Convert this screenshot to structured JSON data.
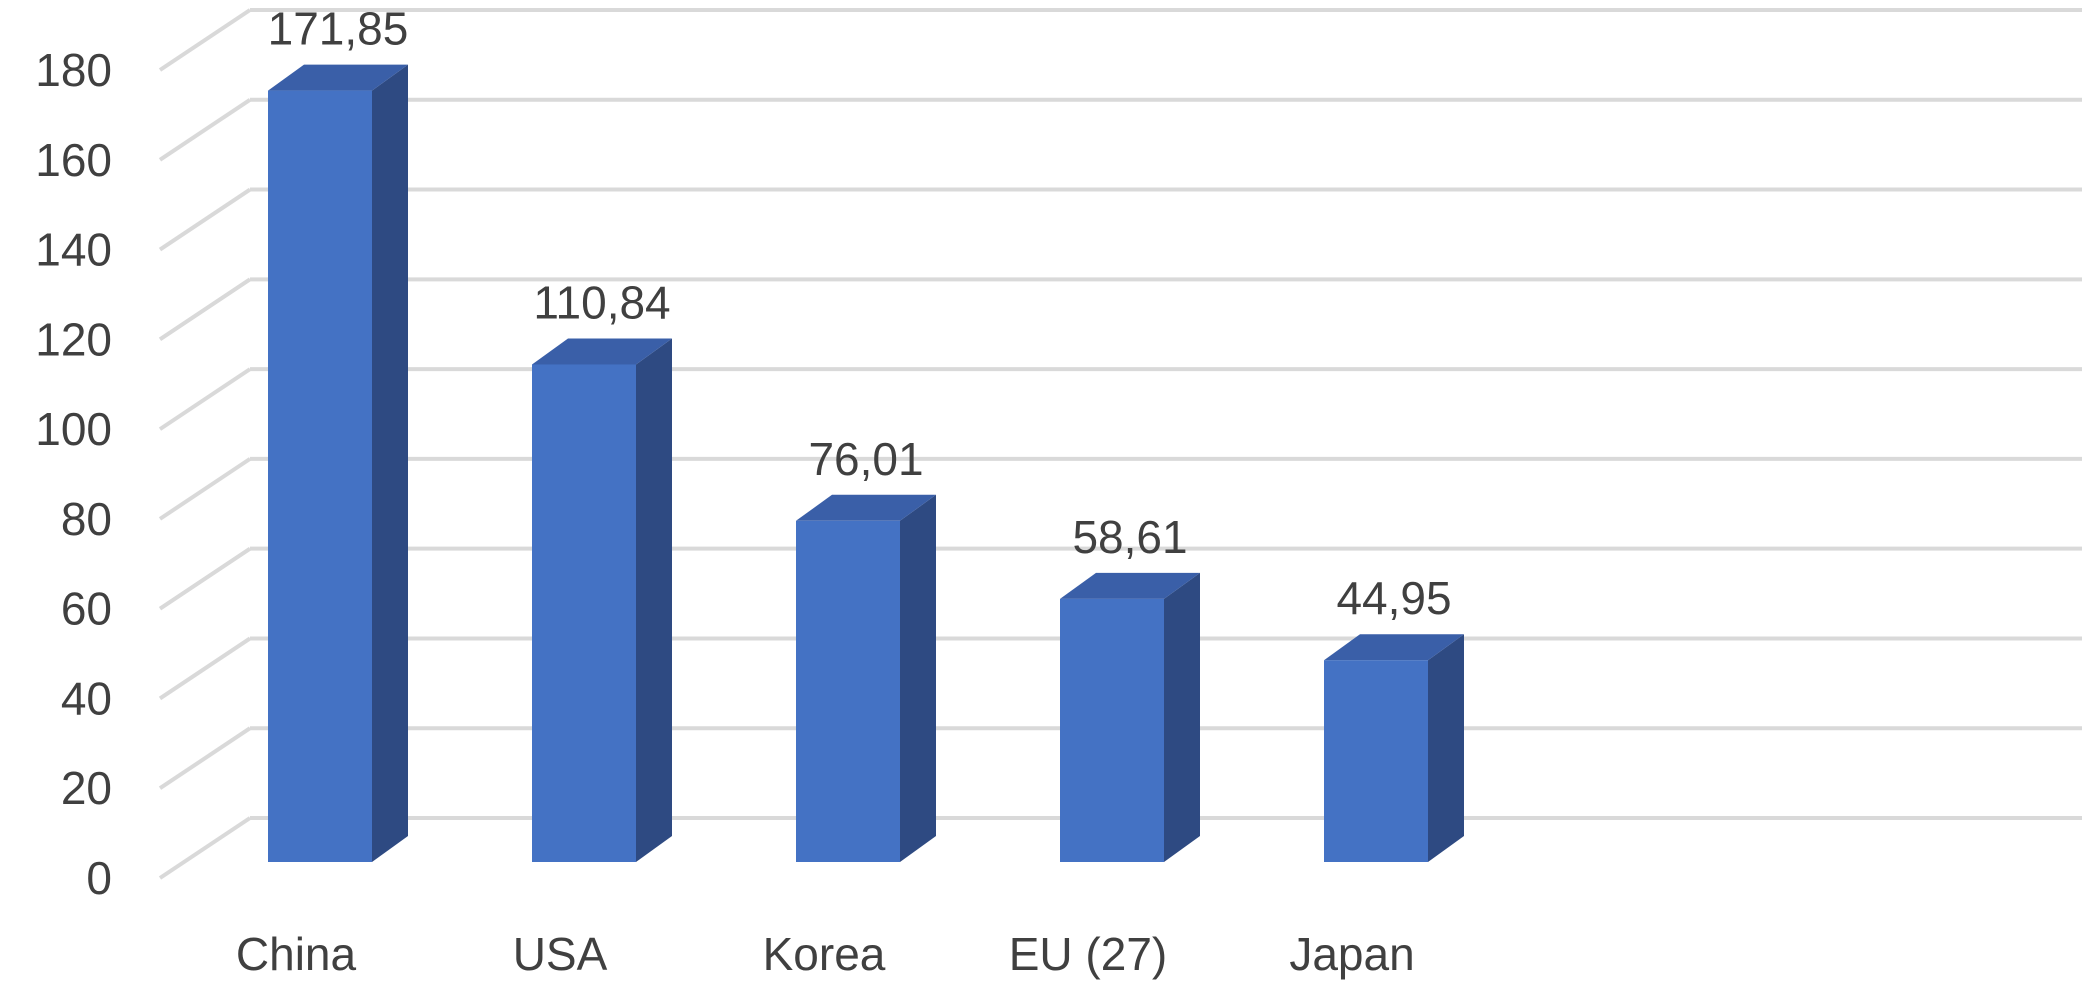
{
  "chart_data": {
    "type": "bar",
    "style": "3d-column",
    "categories": [
      "China",
      "USA",
      "Korea",
      "EU (27)",
      "Japan"
    ],
    "values": [
      171.85,
      110.84,
      76.01,
      58.61,
      44.95
    ],
    "data_labels": [
      "171,85",
      "110,84",
      "76,01",
      "58,61",
      "44,95"
    ],
    "y_ticks": [
      "0",
      "20",
      "40",
      "60",
      "80",
      "100",
      "120",
      "140",
      "160",
      "180"
    ],
    "ylim": [
      0,
      180
    ],
    "title": "",
    "xlabel": "",
    "ylabel": "",
    "grid": true,
    "legend": "none",
    "colors": {
      "bar_front": "#4472c4",
      "bar_side": "#2e4a82",
      "bar_top": "#3a5fa8",
      "grid": "#d9d9d9",
      "text": "#404040"
    }
  }
}
